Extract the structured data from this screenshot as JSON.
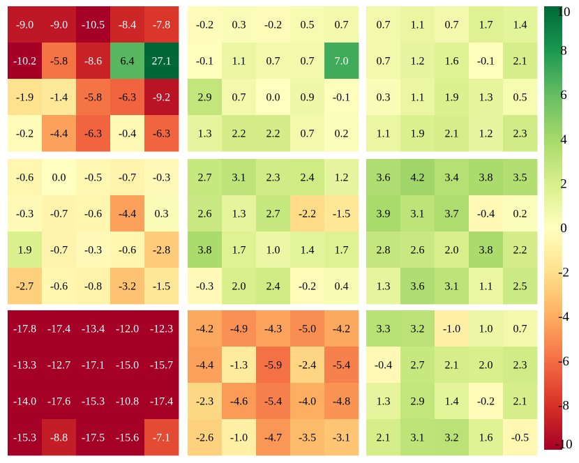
{
  "chart_data": {
    "type": "heatmap",
    "title": "",
    "xlabel": "",
    "ylabel": "",
    "panel_grid": {
      "rows": 3,
      "cols": 3
    },
    "cells_per_panel": {
      "rows": 4,
      "cols": 5
    },
    "color_scale": {
      "colormap": "RdYlGn",
      "vmin": -10,
      "vmax": 10,
      "ticks": [
        10,
        8,
        6,
        4,
        2,
        0,
        -2,
        -4,
        -6,
        -8,
        -10
      ],
      "tick_labels": [
        "10",
        "8",
        "6",
        "4",
        "2",
        "0",
        "-2",
        "-4",
        "-6",
        "-8",
        "-10"
      ],
      "position": "right"
    },
    "panels": [
      {
        "values": [
          [
            -9.0,
            -9.0,
            -10.5,
            -8.4,
            -7.8
          ],
          [
            -10.2,
            -5.8,
            -8.6,
            6.4,
            27.1
          ],
          [
            -1.9,
            -1.4,
            -5.8,
            -6.3,
            -9.2
          ],
          [
            -0.2,
            -4.4,
            -6.3,
            -0.4,
            -6.3
          ]
        ]
      },
      {
        "values": [
          [
            -0.2,
            0.3,
            -0.2,
            0.5,
            0.7
          ],
          [
            -0.1,
            1.1,
            0.7,
            0.7,
            7.0
          ],
          [
            2.9,
            0.7,
            0.0,
            0.9,
            -0.1
          ],
          [
            1.3,
            2.2,
            2.2,
            0.7,
            0.2
          ]
        ]
      },
      {
        "values": [
          [
            0.7,
            1.1,
            0.7,
            1.7,
            1.4
          ],
          [
            0.7,
            1.2,
            1.6,
            -0.1,
            2.1
          ],
          [
            0.3,
            1.1,
            1.9,
            1.3,
            0.5
          ],
          [
            1.1,
            1.9,
            2.1,
            1.2,
            2.3
          ]
        ]
      },
      {
        "values": [
          [
            -0.6,
            0.0,
            -0.5,
            -0.7,
            -0.3
          ],
          [
            -0.3,
            -0.7,
            -0.6,
            -4.4,
            0.3
          ],
          [
            1.9,
            -0.7,
            -0.3,
            -0.6,
            -2.8
          ],
          [
            -2.7,
            -0.6,
            -0.8,
            -3.2,
            -1.5
          ]
        ]
      },
      {
        "values": [
          [
            2.7,
            3.1,
            2.3,
            2.4,
            1.2
          ],
          [
            2.6,
            1.3,
            2.7,
            -2.2,
            -1.5
          ],
          [
            3.8,
            1.7,
            1.0,
            1.4,
            1.7
          ],
          [
            -0.3,
            2.0,
            2.4,
            -0.2,
            0.4
          ]
        ]
      },
      {
        "values": [
          [
            3.6,
            4.2,
            3.4,
            3.8,
            3.5
          ],
          [
            3.9,
            3.1,
            3.7,
            -0.4,
            0.2
          ],
          [
            2.8,
            2.6,
            2.0,
            3.8,
            2.2
          ],
          [
            1.3,
            3.6,
            3.1,
            1.1,
            2.5
          ]
        ]
      },
      {
        "values": [
          [
            -17.8,
            -17.4,
            -13.4,
            -12.0,
            -12.3
          ],
          [
            -13.3,
            -12.7,
            -17.1,
            -15.0,
            -15.7
          ],
          [
            -14.0,
            -17.6,
            -15.3,
            -10.8,
            -17.4
          ],
          [
            -15.3,
            -8.8,
            -17.5,
            -15.6,
            -7.1
          ]
        ]
      },
      {
        "values": [
          [
            -4.2,
            -4.9,
            -4.3,
            -5.0,
            -4.2
          ],
          [
            -4.4,
            -1.3,
            -5.9,
            -2.4,
            -5.4
          ],
          [
            -2.3,
            -4.6,
            -5.4,
            -4.0,
            -4.8
          ],
          [
            -2.6,
            -1.0,
            -4.7,
            -3.5,
            -3.1
          ]
        ]
      },
      {
        "values": [
          [
            3.3,
            3.2,
            -1.0,
            1.0,
            0.7
          ],
          [
            -0.4,
            2.7,
            2.1,
            2.0,
            2.3
          ],
          [
            1.3,
            2.9,
            1.4,
            -0.2,
            2.1
          ],
          [
            2.1,
            3.1,
            3.2,
            1.6,
            -0.5
          ]
        ]
      }
    ]
  }
}
